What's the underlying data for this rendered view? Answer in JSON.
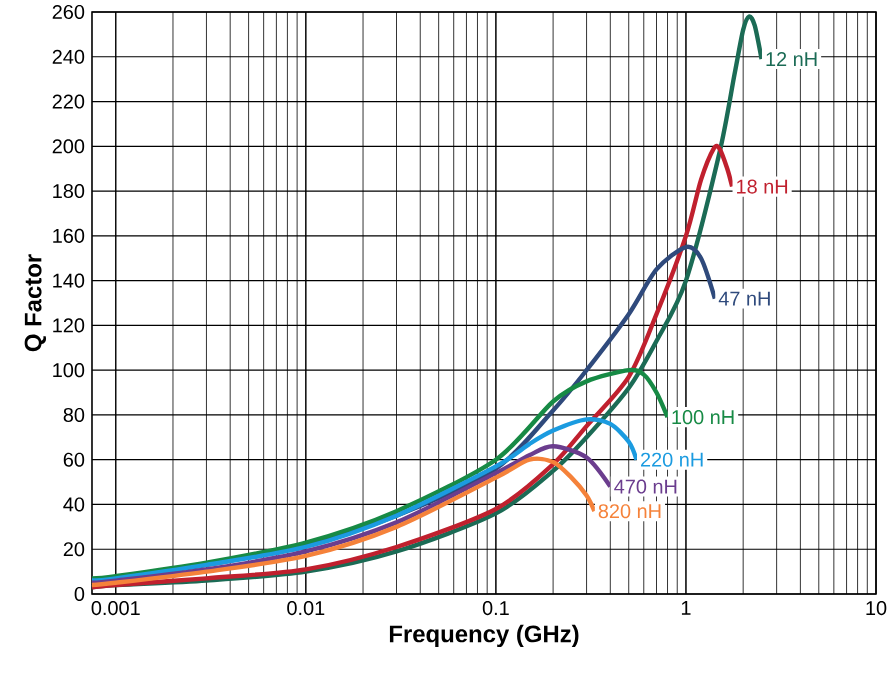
{
  "chart_data": {
    "type": "line",
    "xlabel": "Frequency (GHz)",
    "ylabel": "Q Factor",
    "log": "x",
    "grid": true,
    "legend": false,
    "xlim": [
      0.00075,
      10
    ],
    "xticks": [
      0.001,
      0.01,
      0.1,
      1,
      10
    ],
    "ylim": [
      0,
      260
    ],
    "yticks": [
      0,
      20,
      40,
      60,
      80,
      100,
      120,
      140,
      160,
      180,
      200,
      220,
      240,
      260
    ],
    "series": [
      {
        "name": "12 nH",
        "color": "#1b6b55",
        "x": [
          0.00075,
          0.001,
          0.003,
          0.01,
          0.03,
          0.1,
          0.2,
          0.3,
          0.5,
          0.7,
          1,
          1.5,
          1.8,
          2,
          2.15,
          2.3,
          2.5
        ],
        "values": [
          3,
          4,
          6,
          10,
          19,
          36,
          55,
          70,
          92,
          113,
          140,
          197,
          232,
          252,
          258,
          254,
          239
        ]
      },
      {
        "name": "18 nH",
        "color": "#c0202e",
        "x": [
          0.00075,
          0.001,
          0.003,
          0.01,
          0.03,
          0.1,
          0.2,
          0.3,
          0.5,
          0.7,
          1,
          1.2,
          1.4,
          1.5,
          1.65,
          1.75
        ],
        "values": [
          3,
          4,
          7,
          11,
          21,
          38,
          58,
          75,
          97,
          125,
          160,
          185,
          199,
          199,
          190,
          182
        ]
      },
      {
        "name": "47 nH",
        "color": "#2f4a7c",
        "x": [
          0.00075,
          0.001,
          0.003,
          0.01,
          0.03,
          0.1,
          0.2,
          0.3,
          0.5,
          0.7,
          1,
          1.2,
          1.42
        ],
        "values": [
          6,
          7,
          13,
          22,
          35,
          56,
          82,
          100,
          125,
          145,
          155,
          150,
          132
        ]
      },
      {
        "name": "100 nH",
        "color": "#178a45",
        "x": [
          0.00075,
          0.001,
          0.003,
          0.01,
          0.03,
          0.1,
          0.2,
          0.3,
          0.5,
          0.6,
          0.7,
          0.8
        ],
        "values": [
          7,
          8,
          14,
          23,
          37,
          60,
          86,
          95,
          100,
          98,
          90,
          79
        ]
      },
      {
        "name": "220 nH",
        "color": "#1b9be0",
        "x": [
          0.00075,
          0.001,
          0.003,
          0.01,
          0.03,
          0.1,
          0.15,
          0.2,
          0.3,
          0.4,
          0.5,
          0.55
        ],
        "values": [
          6,
          7,
          13,
          21,
          35,
          57,
          67,
          73,
          78,
          76,
          68,
          60
        ]
      },
      {
        "name": "470 nH",
        "color": "#6b3d8e",
        "x": [
          0.00075,
          0.001,
          0.003,
          0.01,
          0.03,
          0.1,
          0.15,
          0.2,
          0.3,
          0.4
        ],
        "values": [
          5,
          6,
          11,
          19,
          32,
          54,
          62,
          66,
          61,
          48
        ]
      },
      {
        "name": "820 nH",
        "color": "#f5823a",
        "x": [
          0.00075,
          0.001,
          0.003,
          0.01,
          0.03,
          0.1,
          0.15,
          0.2,
          0.25,
          0.3,
          0.33
        ],
        "values": [
          4,
          5,
          10,
          17,
          30,
          52,
          60,
          59,
          52,
          44,
          37
        ]
      }
    ]
  }
}
